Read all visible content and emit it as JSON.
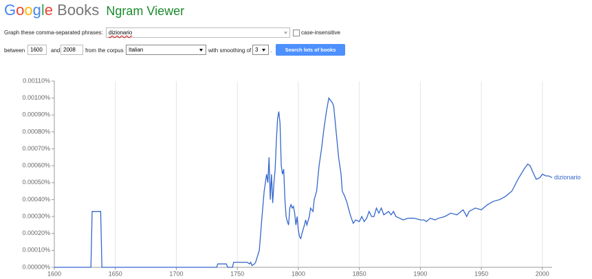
{
  "header": {
    "brand": "Google",
    "product": "Books",
    "app": "Ngram Viewer"
  },
  "form": {
    "phrases_label": "Graph these comma-separated phrases:",
    "phrases": "dizionario",
    "case_insensitive": "case-insensitive",
    "between": "between",
    "year_start": "1600",
    "and": "and",
    "year_end": "2008",
    "corpus_label": "from the corpus",
    "corpus": "Italian",
    "smoothing_label": "with smoothing of",
    "smoothing": "3",
    "period": ".",
    "button": "Search lots of books"
  },
  "chart_data": {
    "type": "line",
    "x": [
      1600,
      1630,
      1631,
      1638,
      1639,
      1733,
      1734,
      1741,
      1742,
      1746,
      1747,
      1758,
      1760,
      1761,
      1762,
      1764,
      1765,
      1768,
      1770,
      1772,
      1774,
      1775,
      1776,
      1777,
      1778,
      1779,
      1780,
      1781,
      1782,
      1783,
      1784,
      1785,
      1786,
      1787,
      1788,
      1789,
      1790,
      1791,
      1792,
      1793,
      1794,
      1795,
      1796,
      1797,
      1798,
      1799,
      1800,
      1801,
      1802,
      1803,
      1805,
      1806,
      1807,
      1809,
      1810,
      1812,
      1813,
      1815,
      1817,
      1819,
      1821,
      1823,
      1825,
      1827,
      1828,
      1829,
      1831,
      1833,
      1835,
      1836,
      1838,
      1840,
      1841,
      1843,
      1845,
      1847,
      1850,
      1852,
      1854,
      1856,
      1858,
      1860,
      1862,
      1864,
      1866,
      1868,
      1870,
      1872,
      1874,
      1876,
      1878,
      1880,
      1883,
      1886,
      1890,
      1895,
      1900,
      1903,
      1905,
      1908,
      1912,
      1915,
      1920,
      1925,
      1930,
      1935,
      1938,
      1940,
      1945,
      1950,
      1955,
      1960,
      1965,
      1970,
      1975,
      1980,
      1985,
      1988,
      1990,
      1993,
      1995,
      1998,
      2000,
      2003,
      2005,
      2008
    ],
    "series": [
      {
        "name": "dizionario",
        "color": "#3366cc",
        "values": [
          0,
          0,
          0.00033,
          0.00033,
          0,
          0,
          2e-05,
          2e-05,
          0,
          0,
          3e-05,
          3e-05,
          2e-05,
          3e-05,
          1e-05,
          2e-05,
          3e-05,
          0.0001,
          0.00028,
          0.00045,
          0.00055,
          0.0005,
          0.00065,
          0.0004,
          0.00055,
          0.00038,
          0.0005,
          0.00058,
          0.00075,
          0.00088,
          0.00092,
          0.00085,
          0.0006,
          0.00055,
          0.00058,
          0.0004,
          0.0003,
          0.00027,
          0.00025,
          0.00035,
          0.00037,
          0.00035,
          0.00036,
          0.00032,
          0.00025,
          0.0003,
          0.00022,
          0.00018,
          0.00017,
          0.0002,
          0.00025,
          0.00028,
          0.00025,
          0.0003,
          0.00035,
          0.00033,
          0.0004,
          0.00045,
          0.0006,
          0.0007,
          0.00082,
          0.00092,
          0.001,
          0.00098,
          0.00097,
          0.00095,
          0.0008,
          0.00065,
          0.00055,
          0.00045,
          0.00042,
          0.00038,
          0.00035,
          0.0003,
          0.00026,
          0.00028,
          0.00027,
          0.0003,
          0.00027,
          0.00029,
          0.00033,
          0.0003,
          0.0003,
          0.00035,
          0.00032,
          0.00035,
          0.00031,
          0.00032,
          0.00033,
          0.00031,
          0.00033,
          0.0003,
          0.00029,
          0.00028,
          0.00029,
          0.00029,
          0.00028,
          0.00028,
          0.00027,
          0.00029,
          0.00028,
          0.00029,
          0.0003,
          0.00032,
          0.00031,
          0.00034,
          0.0003,
          0.00033,
          0.00035,
          0.00034,
          0.00037,
          0.00039,
          0.0004,
          0.00042,
          0.00045,
          0.00052,
          0.00058,
          0.00061,
          0.0006,
          0.00055,
          0.00052,
          0.00053,
          0.00055,
          0.00054,
          0.00054,
          0.00053
        ]
      }
    ],
    "xlim": [
      1600,
      2008
    ],
    "xticks": [
      1600,
      1650,
      1700,
      1750,
      1800,
      1850,
      1900,
      1950,
      2000
    ],
    "ylim": [
      0,
      0.0011
    ],
    "yticks": [
      {
        "value": 0,
        "label": "0.00000%"
      },
      {
        "value": 0.0001,
        "label": "0.00010%"
      },
      {
        "value": 0.0002,
        "label": "0.00020%"
      },
      {
        "value": 0.0003,
        "label": "0.00030%"
      },
      {
        "value": 0.0004,
        "label": "0.00040%"
      },
      {
        "value": 0.0005,
        "label": "0.00050%"
      },
      {
        "value": 0.0006,
        "label": "0.00060%"
      },
      {
        "value": 0.0007,
        "label": "0.00070%"
      },
      {
        "value": 0.0008,
        "label": "0.00080%"
      },
      {
        "value": 0.0009,
        "label": "0.00090%"
      },
      {
        "value": 0.001,
        "label": "0.00100%"
      },
      {
        "value": 0.0011,
        "label": "0.00110%"
      }
    ],
    "grid": true
  }
}
